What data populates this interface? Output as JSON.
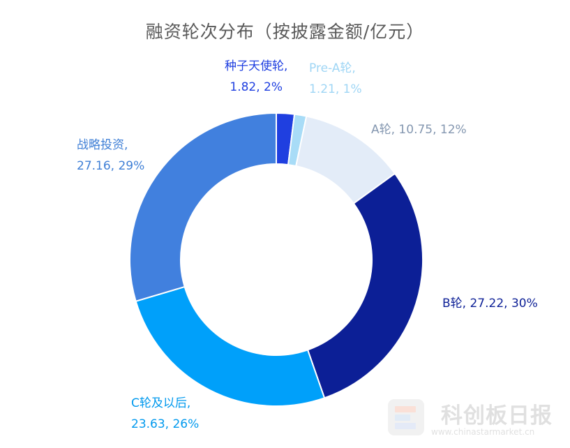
{
  "chart_data": {
    "type": "pie",
    "donut": true,
    "title": "融资轮次分布（按披露金额/亿元）",
    "slices": [
      {
        "name": "种子天使轮",
        "value": 1.82,
        "percent": "2%",
        "color": "#1f3fe0",
        "label_color": "#1f3fe0",
        "value_label": "1.82, 2%"
      },
      {
        "name": "Pre-A轮",
        "value": 1.21,
        "percent": "1%",
        "color": "#a8dcf7",
        "label_color": "#9fd6f5",
        "value_label": "1.21, 1%"
      },
      {
        "name": "A轮",
        "value": 10.75,
        "percent": "12%",
        "color": "#e3ecf8",
        "label_color": "#8497b0",
        "value_label": "10.75, 12%"
      },
      {
        "name": "B轮",
        "value": 27.22,
        "percent": "30%",
        "color": "#0c1f96",
        "label_color": "#0c1f96",
        "value_label": "27.22, 30%"
      },
      {
        "name": "C轮及以后",
        "value": 23.63,
        "percent": "26%",
        "color": "#00a0fa",
        "label_color": "#0099ee",
        "value_label": "23.63, 26%"
      },
      {
        "name": "战略投资",
        "value": 27.16,
        "percent": "29%",
        "color": "#4180de",
        "label_color": "#3f7fd6",
        "value_label": "27.16, 29%"
      }
    ]
  },
  "labels": {
    "seed": {
      "line1": "种子天使轮,",
      "line2": "1.82, 2%"
    },
    "prea": {
      "line1": "Pre-A轮,",
      "line2": "1.21, 1%"
    },
    "a": {
      "text": "A轮, 10.75, 12%"
    },
    "b": {
      "text": "B轮, 27.22, 30%"
    },
    "c": {
      "line1": "C轮及以后,",
      "line2": "23.63, 26%"
    },
    "strategic": {
      "line1": "战略投资,",
      "line2": "27.16, 29%"
    }
  },
  "watermark": {
    "name_cn": "科创板日报",
    "site": "www.chinastarmarket.cn"
  }
}
